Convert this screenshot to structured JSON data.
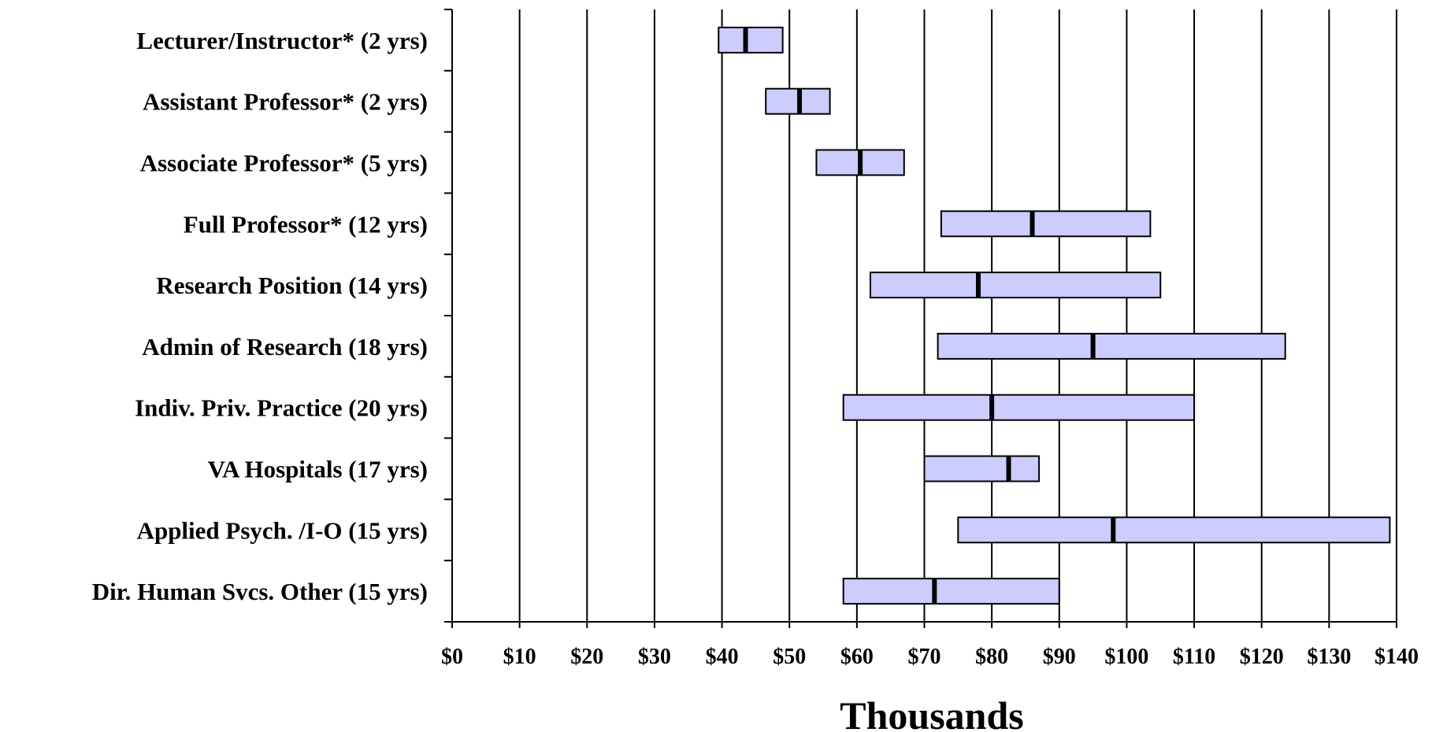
{
  "chart_data": {
    "type": "bar",
    "subtype": "horizontal-range-with-median",
    "title": "",
    "xlabel": "Thousands",
    "ylabel": "",
    "xlim": [
      0,
      140
    ],
    "x_tick_values": [
      0,
      10,
      20,
      30,
      40,
      50,
      60,
      70,
      80,
      90,
      100,
      110,
      120,
      130,
      140
    ],
    "x_tick_labels": [
      "$0",
      "$10",
      "$20",
      "$30",
      "$40",
      "$50",
      "$60",
      "$70",
      "$80",
      "$90",
      "$100",
      "$110",
      "$120",
      "$130",
      "$140"
    ],
    "grid": true,
    "colors": {
      "bar_fill": "#ccccff",
      "bar_stroke": "#000000",
      "median": "#000000"
    },
    "categories": [
      "Lecturer/Instructor* (2 yrs)",
      "Assistant Professor* (2 yrs)",
      "Associate Professor* (5 yrs)",
      "Full Professor* (12 yrs)",
      "Research Position (14 yrs)",
      "Admin of Research (18 yrs)",
      "Indiv. Priv. Practice (20 yrs)",
      "VA Hospitals (17 yrs)",
      "Applied Psych. /I-O (15 yrs)",
      "Dir. Human Svcs. Other (15 yrs)"
    ],
    "low": [
      39.5,
      46.5,
      54,
      72.5,
      62,
      72,
      58,
      70,
      75,
      58
    ],
    "median": [
      43.5,
      51.5,
      60.5,
      86,
      78,
      95,
      80,
      82.5,
      98,
      71.5
    ],
    "high": [
      49,
      56,
      67,
      103.5,
      105,
      123.5,
      110,
      87,
      139,
      90
    ]
  }
}
